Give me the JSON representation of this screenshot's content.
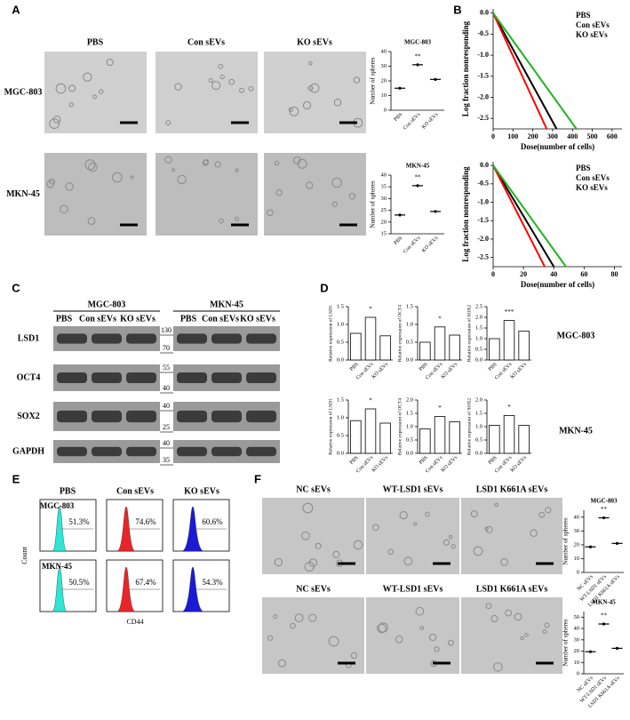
{
  "panel_labels": [
    "A",
    "B",
    "C",
    "D",
    "E",
    "F"
  ],
  "a": {
    "column_headers": [
      "PBS",
      "Con sEVs",
      "KO sEVs"
    ],
    "row_labels": [
      "MGC-803",
      "MKN-45"
    ]
  },
  "c": {
    "cell_lines": [
      "MGC-803",
      "MKN-45"
    ],
    "lanes": [
      "PBS",
      "Con sEVs",
      "KO sEVs"
    ],
    "proteins": [
      "LSD1",
      "OCT4",
      "SOX2",
      "GAPDH"
    ],
    "markers": [
      "130",
      "70",
      "55",
      "40",
      "40",
      "25",
      "40",
      "35"
    ]
  },
  "d": {
    "row_labels": [
      "MGC-803",
      "MKN-45"
    ]
  },
  "e": {
    "column_headers": [
      "PBS",
      "Con sEVs",
      "KO sEVs"
    ],
    "row_labels": [
      "MGC-803",
      "MKN-45"
    ],
    "percentages": [
      [
        "51.3%",
        "74.6%",
        "60.6%"
      ],
      [
        "50.5%",
        "67.4%",
        "54.3%"
      ]
    ],
    "y_label": "Count",
    "x_label": "CD44"
  },
  "f": {
    "column_headers": [
      "NC sEVs",
      "WT-LSD1 sEVs",
      "LSD1 K661A sEVs"
    ]
  },
  "chart_data": [
    {
      "type": "dot",
      "title": "MGC-803",
      "y_label": "Number of spheres",
      "categories": [
        "PBS",
        "Con sEVs",
        "KO sEVs"
      ],
      "values": [
        15,
        31,
        21
      ],
      "color": "#000000",
      "ylim": [
        0,
        40
      ],
      "yticks": [
        0,
        10,
        20,
        30,
        40
      ],
      "annotations": [
        {
          "text": "**",
          "category": "Con sEVs"
        }
      ]
    },
    {
      "type": "dot",
      "title": "MKN-45",
      "y_label": "Number of spheres",
      "categories": [
        "PBS",
        "Con sEVs",
        "KO sEVs"
      ],
      "values": [
        23,
        35.5,
        24.5
      ],
      "color": "#000000",
      "ylim": [
        15,
        40
      ],
      "yticks": [
        15,
        20,
        25,
        30,
        35,
        40
      ],
      "annotations": [
        {
          "text": "**",
          "category": "Con sEVs"
        }
      ]
    },
    {
      "type": "line",
      "y_label": "Log fraction nonresponding",
      "x_label": "Dose(number of cells)",
      "xlim": [
        0,
        650
      ],
      "xticks": [
        0,
        100,
        200,
        300,
        400,
        500,
        600
      ],
      "ylim": [
        -2.75,
        0.1
      ],
      "yticks": [
        {
          "value": 0,
          "label": "0.0"
        },
        -0.5,
        {
          "value": -1,
          "label": "-1.0"
        },
        -1.5,
        {
          "value": -2,
          "label": "-2.0"
        },
        -2.5
      ],
      "legend": "upper right",
      "series": [
        {
          "name": "PBS",
          "color": "#000000",
          "x": [
            0,
            320
          ],
          "values": [
            0,
            -2.75
          ]
        },
        {
          "name": "Con sEVs",
          "color": "#ff0000",
          "x": [
            0,
            270
          ],
          "values": [
            0,
            -2.75
          ]
        },
        {
          "name": "KO sEVs",
          "color": "#1fb51f",
          "x": [
            0,
            420
          ],
          "values": [
            0,
            -2.75
          ]
        }
      ]
    },
    {
      "type": "line",
      "y_label": "Log fraction nonresponding",
      "x_label": "Dose(number of cells)",
      "xlim": [
        0,
        85
      ],
      "xticks": [
        0,
        20,
        40,
        60,
        80
      ],
      "ylim": [
        -2.75,
        0.1
      ],
      "yticks": [
        {
          "value": 0,
          "label": "0.0"
        },
        -0.5,
        {
          "value": -1,
          "label": "-1.0"
        },
        -1.5,
        {
          "value": -2,
          "label": "-2.0"
        },
        -2.5
      ],
      "legend": "upper right",
      "series": [
        {
          "name": "PBS",
          "color": "#000000",
          "x": [
            0,
            40
          ],
          "values": [
            0,
            -2.75
          ]
        },
        {
          "name": "Con sEVs",
          "color": "#ff0000",
          "x": [
            0,
            34
          ],
          "values": [
            0,
            -2.75
          ]
        },
        {
          "name": "KO sEVs",
          "color": "#1fb51f",
          "x": [
            0,
            48
          ],
          "values": [
            0,
            -2.75
          ]
        }
      ]
    },
    {
      "type": "bar",
      "y_label": "Relative expression of LSD1",
      "categories": [
        "PBS",
        "Con sEVs",
        "KO sEVs"
      ],
      "values": [
        0.75,
        1.2,
        0.68
      ],
      "color": "#ffffff",
      "ylim": [
        0,
        1.5
      ],
      "yticks": [
        {
          "value": 0,
          "label": "0.0"
        },
        0.5,
        {
          "value": 1,
          "label": "1.0"
        },
        1.5
      ],
      "annotations": [
        {
          "text": "*",
          "category": "Con sEVs"
        }
      ]
    },
    {
      "type": "bar",
      "y_label": "Relative expression of OCT4",
      "categories": [
        "PBS",
        "Con sEVs",
        "KO sEVs"
      ],
      "values": [
        0.5,
        0.93,
        0.7
      ],
      "color": "#ffffff",
      "ylim": [
        0,
        1.5
      ],
      "yticks": [
        {
          "value": 0,
          "label": "0.0"
        },
        0.5,
        {
          "value": 1,
          "label": "1.0"
        },
        1.5
      ],
      "annotations": [
        {
          "text": "*",
          "category": "Con sEVs"
        }
      ]
    },
    {
      "type": "bar",
      "y_label": "Relative expression of SOX2",
      "categories": [
        "PBS",
        "Con sEVs",
        "KO sEVs"
      ],
      "values": [
        1,
        1.85,
        1.35
      ],
      "color": "#ffffff",
      "ylim": [
        0,
        2.5
      ],
      "yticks": [
        {
          "value": 0,
          "label": "0.0"
        },
        0.5,
        {
          "value": 1,
          "label": "1.0"
        },
        1.5,
        {
          "value": 2,
          "label": "2.0"
        },
        2.5
      ],
      "annotations": [
        {
          "text": "***",
          "category": "Con sEVs"
        }
      ]
    },
    {
      "type": "bar",
      "y_label": "Relative expression of LSD1",
      "categories": [
        "PBS",
        "Con sEVs",
        "KO sEVs"
      ],
      "values": [
        0.92,
        1.25,
        0.85
      ],
      "color": "#ffffff",
      "ylim": [
        0,
        1.5
      ],
      "yticks": [
        {
          "value": 0,
          "label": "0.0"
        },
        0.5,
        {
          "value": 1,
          "label": "1.0"
        },
        1.5
      ],
      "annotations": [
        {
          "text": "*",
          "category": "Con sEVs"
        }
      ]
    },
    {
      "type": "bar",
      "y_label": "Relative expression of OCT4",
      "categories": [
        "PBS",
        "Con sEVs",
        "KO sEVs"
      ],
      "values": [
        0.92,
        1.38,
        1.18
      ],
      "color": "#ffffff",
      "ylim": [
        0,
        2
      ],
      "yticks": [
        {
          "value": 0,
          "label": "0.0"
        },
        0.5,
        {
          "value": 1,
          "label": "1.0"
        },
        1.5,
        {
          "value": 2,
          "label": "2.0"
        }
      ],
      "annotations": [
        {
          "text": "*",
          "category": "Con sEVs"
        }
      ]
    },
    {
      "type": "bar",
      "y_label": "Relative expression of SOX2",
      "categories": [
        "PBS",
        "Con sEVs",
        "KO sEVs"
      ],
      "values": [
        1.05,
        1.42,
        1.05
      ],
      "color": "#ffffff",
      "ylim": [
        0,
        2
      ],
      "yticks": [
        {
          "value": 0,
          "label": "0.0"
        },
        0.5,
        {
          "value": 1,
          "label": "1.0"
        },
        1.5,
        {
          "value": 2,
          "label": "2.0"
        }
      ],
      "annotations": [
        {
          "text": "*",
          "category": "Con sEVs"
        }
      ]
    },
    {
      "type": "dot",
      "title": "MGC-803",
      "y_label": "Number of spheres",
      "categories": [
        "NC sEVs",
        "WT-LSD1 sEVs",
        "LSD1 K661A sEVs"
      ],
      "values": [
        18.5,
        39.5,
        21
      ],
      "color": "#000000",
      "ylim": [
        0,
        45
      ],
      "yticks": [
        0,
        10,
        20,
        30,
        40
      ],
      "annotations": [
        {
          "text": "**",
          "category": "WT-LSD1 sEVs"
        }
      ]
    },
    {
      "type": "dot",
      "title": "MKN-45",
      "y_label": "Number of spheres",
      "categories": [
        "NC sEVs",
        "WT-LSD1 sEVs",
        "LSD1 K661A sEVs"
      ],
      "values": [
        19.5,
        44,
        22.5
      ],
      "color": "#000000",
      "ylim": [
        0,
        55
      ],
      "yticks": [
        0,
        10,
        20,
        30,
        40,
        50
      ],
      "annotations": [
        {
          "text": "**",
          "category": "WT-LSD1 sEVs"
        }
      ]
    }
  ]
}
